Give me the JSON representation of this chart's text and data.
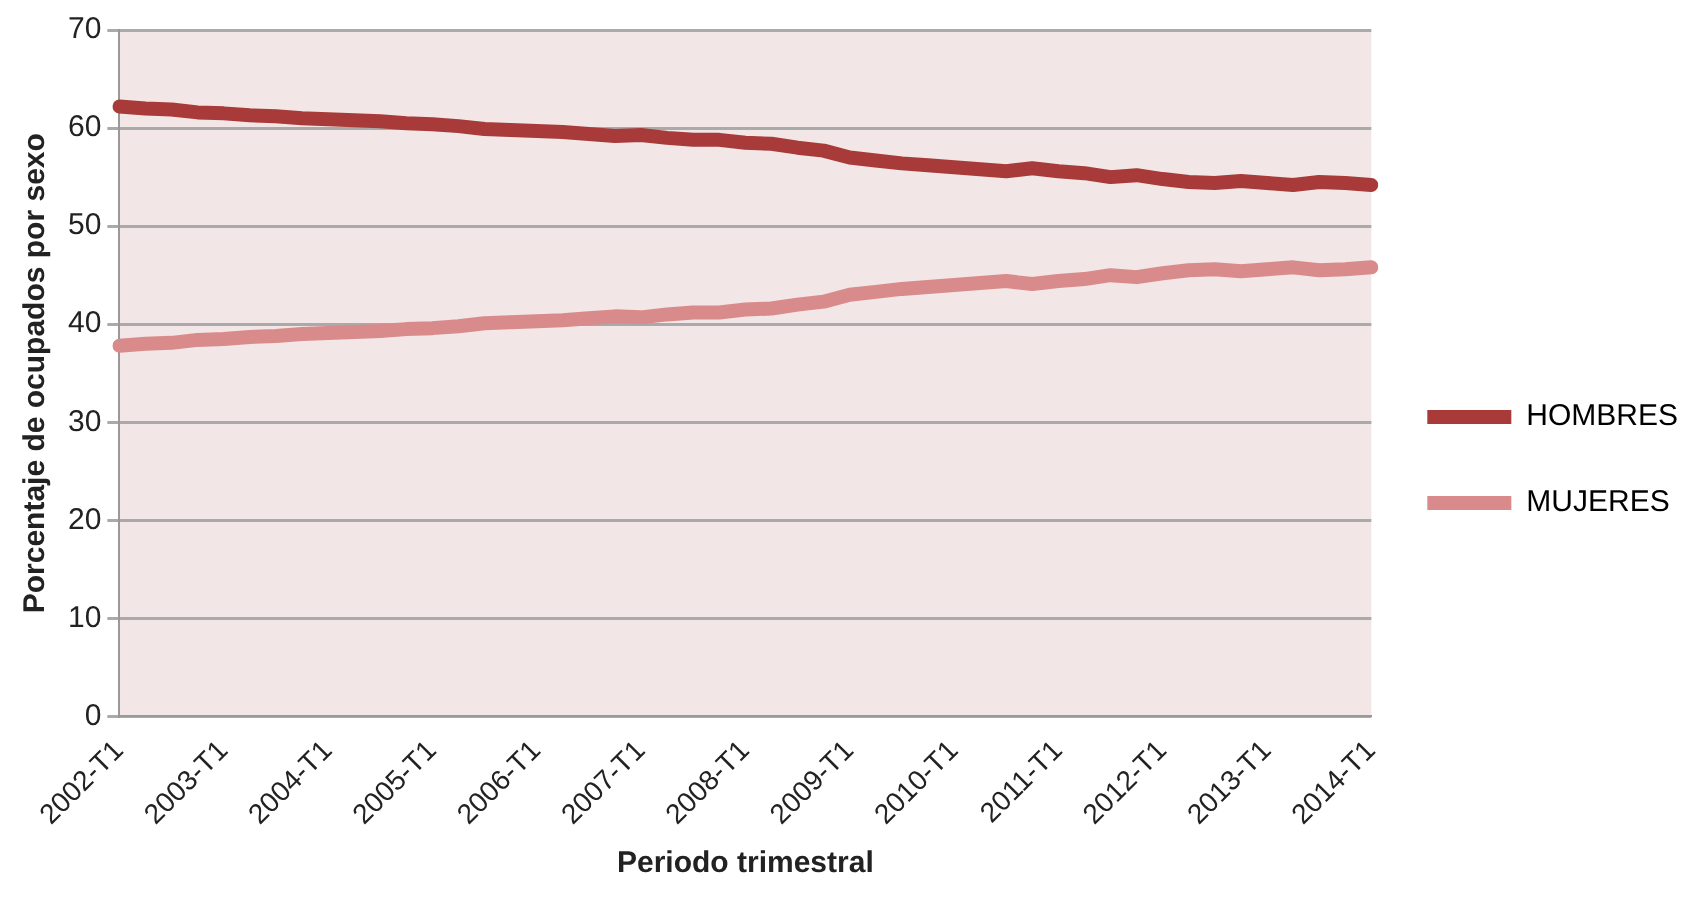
{
  "chart_data": {
    "type": "line",
    "xlabel": "Periodo trimestral",
    "ylabel": "Porcentaje de ocupados por sexo",
    "categories": [
      "2002-T1",
      null,
      null,
      null,
      "2003-T1",
      null,
      null,
      null,
      "2004-T1",
      null,
      null,
      null,
      "2005-T1",
      null,
      null,
      null,
      "2006-T1",
      null,
      null,
      null,
      "2007-T1",
      null,
      null,
      null,
      "2008-T1",
      null,
      null,
      null,
      "2009-T1",
      null,
      null,
      null,
      "2010-T1",
      null,
      null,
      null,
      "2011-T1",
      null,
      null,
      null,
      "2012-T1",
      null,
      null,
      null,
      "2013-T1",
      null,
      null,
      null,
      "2014-T1"
    ],
    "series": [
      {
        "name": "HOMBRES",
        "color": "#a83a3a",
        "values": [
          62.2,
          62.0,
          61.9,
          61.6,
          61.5,
          61.3,
          61.2,
          61.0,
          60.9,
          60.8,
          60.7,
          60.5,
          60.4,
          60.2,
          59.9,
          59.8,
          59.7,
          59.6,
          59.4,
          59.2,
          59.3,
          59.0,
          58.8,
          58.8,
          58.5,
          58.4,
          58.0,
          57.7,
          57.0,
          56.7,
          56.4,
          56.2,
          56.0,
          55.8,
          55.6,
          55.9,
          55.6,
          55.4,
          55.0,
          55.2,
          54.8,
          54.5,
          54.4,
          54.6,
          54.4,
          54.2,
          54.5,
          54.4,
          54.2
        ]
      },
      {
        "name": "MUJERES",
        "color": "#d98a8a",
        "values": [
          37.8,
          38.0,
          38.1,
          38.4,
          38.5,
          38.7,
          38.8,
          39.0,
          39.1,
          39.2,
          39.3,
          39.5,
          39.6,
          39.8,
          40.1,
          40.2,
          40.3,
          40.4,
          40.6,
          40.8,
          40.7,
          41.0,
          41.2,
          41.2,
          41.5,
          41.6,
          42.0,
          42.3,
          43.0,
          43.3,
          43.6,
          43.8,
          44.0,
          44.2,
          44.4,
          44.1,
          44.4,
          44.6,
          45.0,
          44.8,
          45.2,
          45.5,
          45.6,
          45.4,
          45.6,
          45.8,
          45.5,
          45.6,
          45.8
        ]
      }
    ],
    "ylim": [
      0,
      70
    ],
    "yticks": [
      0,
      10,
      20,
      30,
      40,
      50,
      60,
      70
    ],
    "grid": "y",
    "legend": "right",
    "marker": "none",
    "line_style": "solid"
  }
}
